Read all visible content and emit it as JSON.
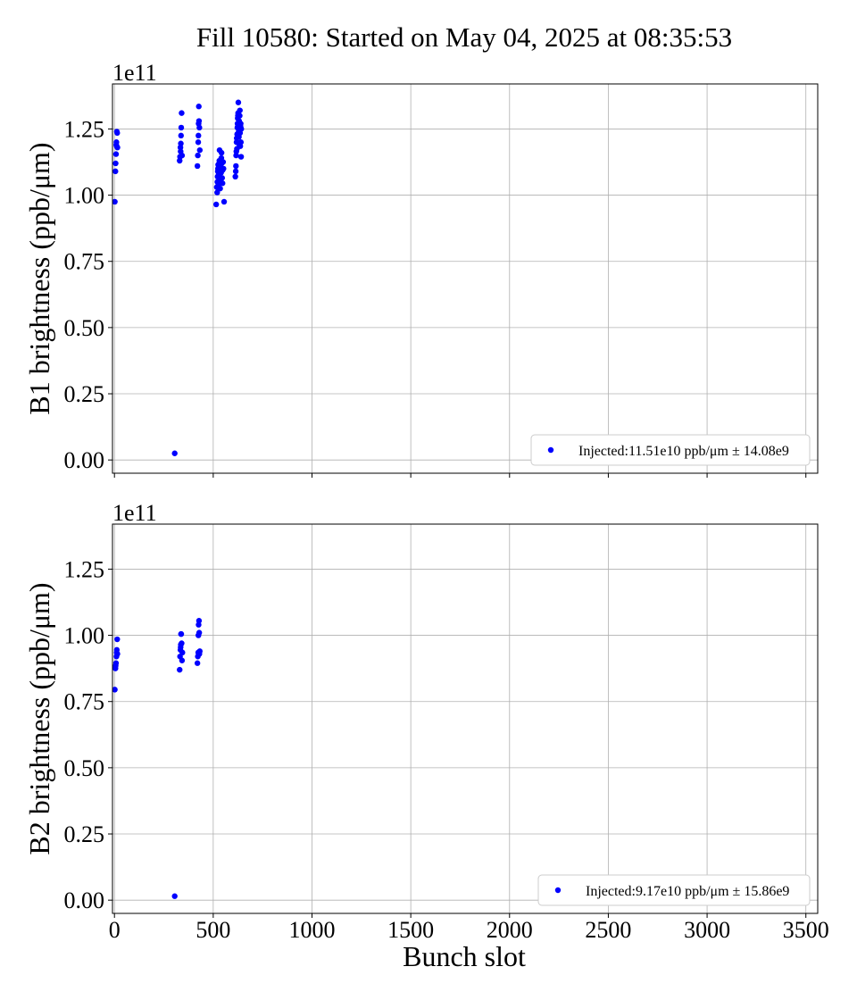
{
  "figure": {
    "title": "Fill 10580: Started on May 04, 2025 at 08:35:53",
    "xlabel": "Bunch slot"
  },
  "chart_data": [
    {
      "type": "scatter",
      "panel": "top",
      "ylabel": "B1 brightness (ppb/μm)",
      "offset_text": "1e11",
      "xlim": [
        -10,
        3560
      ],
      "ylim": [
        -0.05,
        1.42
      ],
      "y_multiplier": 100000000000.0,
      "xticks": [
        0,
        500,
        1000,
        1500,
        2000,
        2500,
        3000,
        3500
      ],
      "yticks": [
        0.0,
        0.25,
        0.5,
        0.75,
        1.0,
        1.25
      ],
      "ytick_labels": [
        "0.00",
        "0.25",
        "0.50",
        "0.75",
        "1.00",
        "1.25"
      ],
      "show_xtick_labels": false,
      "grid": true,
      "legend_position": "lower-right",
      "marker_color": "#0000ff",
      "series": [
        {
          "name": "Injected:11.51e10 ppb/μm ± 14.08e9",
          "points": [
            [
              2,
              0.975
            ],
            [
              5,
              1.09
            ],
            [
              6,
              1.12
            ],
            [
              8,
              1.155
            ],
            [
              9,
              1.19
            ],
            [
              10,
              1.2
            ],
            [
              11,
              1.185
            ],
            [
              12,
              1.24
            ],
            [
              14,
              1.235
            ],
            [
              15,
              1.18
            ],
            [
              305,
              0.025
            ],
            [
              330,
              1.13
            ],
            [
              332,
              1.145
            ],
            [
              334,
              1.18
            ],
            [
              335,
              1.165
            ],
            [
              336,
              1.195
            ],
            [
              337,
              1.225
            ],
            [
              338,
              1.255
            ],
            [
              340,
              1.31
            ],
            [
              342,
              1.15
            ],
            [
              420,
              1.11
            ],
            [
              422,
              1.15
            ],
            [
              424,
              1.2
            ],
            [
              425,
              1.225
            ],
            [
              426,
              1.27
            ],
            [
              427,
              1.335
            ],
            [
              428,
              1.28
            ],
            [
              430,
              1.255
            ],
            [
              432,
              1.17
            ],
            [
              515,
              0.965
            ],
            [
              518,
              1.03
            ],
            [
              520,
              1.01
            ],
            [
              521,
              1.05
            ],
            [
              522,
              1.07
            ],
            [
              523,
              1.09
            ],
            [
              524,
              1.1
            ],
            [
              525,
              1.115
            ],
            [
              526,
              1.04
            ],
            [
              528,
              1.08
            ],
            [
              529,
              1.095
            ],
            [
              530,
              1.12
            ],
            [
              531,
              1.13
            ],
            [
              532,
              1.17
            ],
            [
              533,
              1.1
            ],
            [
              535,
              1.025
            ],
            [
              536,
              1.06
            ],
            [
              538,
              1.105
            ],
            [
              539,
              1.13
            ],
            [
              540,
              1.085
            ],
            [
              541,
              1.14
            ],
            [
              542,
              1.16
            ],
            [
              543,
              1.12
            ],
            [
              545,
              1.065
            ],
            [
              547,
              1.045
            ],
            [
              548,
              1.095
            ],
            [
              550,
              1.125
            ],
            [
              552,
              1.1
            ],
            [
              555,
              0.975
            ],
            [
              612,
              1.07
            ],
            [
              614,
              1.09
            ],
            [
              615,
              1.11
            ],
            [
              616,
              1.15
            ],
            [
              617,
              1.165
            ],
            [
              618,
              1.2
            ],
            [
              619,
              1.215
            ],
            [
              620,
              1.175
            ],
            [
              621,
              1.23
            ],
            [
              622,
              1.255
            ],
            [
              623,
              1.27
            ],
            [
              624,
              1.29
            ],
            [
              625,
              1.3
            ],
            [
              626,
              1.31
            ],
            [
              627,
              1.35
            ],
            [
              628,
              1.26
            ],
            [
              629,
              1.24
            ],
            [
              630,
              1.22
            ],
            [
              631,
              1.28
            ],
            [
              632,
              1.25
            ],
            [
              633,
              1.19
            ],
            [
              634,
              1.3
            ],
            [
              635,
              1.32
            ],
            [
              636,
              1.235
            ],
            [
              637,
              1.185
            ],
            [
              638,
              1.26
            ],
            [
              639,
              1.27
            ],
            [
              640,
              1.2
            ],
            [
              641,
              1.145
            ],
            [
              642,
              1.25
            ]
          ]
        }
      ]
    },
    {
      "type": "scatter",
      "panel": "bottom",
      "ylabel": "B2 brightness (ppb/μm)",
      "offset_text": "1e11",
      "xlim": [
        -10,
        3560
      ],
      "ylim": [
        -0.05,
        1.42
      ],
      "y_multiplier": 100000000000.0,
      "xticks": [
        0,
        500,
        1000,
        1500,
        2000,
        2500,
        3000,
        3500
      ],
      "xtick_labels": [
        "0",
        "500",
        "1000",
        "1500",
        "2000",
        "2500",
        "3000",
        "3500"
      ],
      "yticks": [
        0.0,
        0.25,
        0.5,
        0.75,
        1.0,
        1.25
      ],
      "ytick_labels": [
        "0.00",
        "0.25",
        "0.50",
        "0.75",
        "1.00",
        "1.25"
      ],
      "show_xtick_labels": true,
      "grid": true,
      "legend_position": "lower-right",
      "marker_color": "#0000ff",
      "series": [
        {
          "name": "Injected:9.17e10 ppb/μm ± 15.86e9",
          "points": [
            [
              2,
              0.795
            ],
            [
              5,
              0.875
            ],
            [
              6,
              0.885
            ],
            [
              8,
              0.895
            ],
            [
              10,
              0.92
            ],
            [
              11,
              0.935
            ],
            [
              12,
              0.945
            ],
            [
              14,
              0.985
            ],
            [
              15,
              0.93
            ],
            [
              305,
              0.015
            ],
            [
              330,
              0.87
            ],
            [
              332,
              0.92
            ],
            [
              334,
              0.945
            ],
            [
              335,
              0.955
            ],
            [
              336,
              0.965
            ],
            [
              337,
              1.005
            ],
            [
              338,
              1.005
            ],
            [
              340,
              0.97
            ],
            [
              342,
              0.905
            ],
            [
              344,
              0.935
            ],
            [
              420,
              0.895
            ],
            [
              422,
              0.92
            ],
            [
              424,
              0.935
            ],
            [
              425,
              1.0
            ],
            [
              426,
              1.04
            ],
            [
              428,
              1.055
            ],
            [
              429,
              1.01
            ],
            [
              430,
              0.93
            ],
            [
              432,
              0.94
            ]
          ]
        }
      ]
    }
  ]
}
